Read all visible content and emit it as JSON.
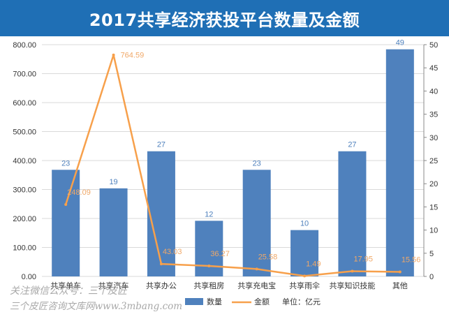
{
  "title": "2017共享经济获投平台数量及金额",
  "watermark": {
    "line1": "关注微信公众号：三个皮匠",
    "line2": "三个皮匠咨询文库网www.3mbang.com"
  },
  "colors": {
    "title_bg": "#1f6fb5",
    "bar": "#4f81bd",
    "line": "#f7a04b",
    "amount_label": "#f0a868",
    "count_label": "#4f81bd",
    "grid": "#d9d9d9",
    "axis_text": "#333333"
  },
  "chart_data": {
    "type": "bar+line",
    "title": "2017共享经济获投平台数量及金额",
    "categories": [
      "共享单车",
      "共享汽车",
      "共享办公",
      "共享租房",
      "共享充电宝",
      "共享雨伞",
      "共享知识技能",
      "其他"
    ],
    "series": [
      {
        "name": "数量",
        "type": "bar",
        "axis": "right",
        "values": [
          23,
          19,
          27,
          12,
          23,
          10,
          27,
          49
        ],
        "labels": [
          "23",
          "19",
          "27",
          "12",
          "23",
          "10",
          "27",
          "49"
        ]
      },
      {
        "name": "金额",
        "type": "line",
        "axis": "left",
        "values": [
          248.09,
          764.59,
          43.03,
          36.27,
          25.58,
          1.49,
          17.95,
          15.56
        ],
        "labels": [
          "248.09",
          "764.59",
          "43.03",
          "36.27",
          "25.58",
          "1.49",
          "17.95",
          "15.56"
        ]
      }
    ],
    "left_axis": {
      "range": [
        0,
        800
      ],
      "ticks": [
        "0.00",
        "100.00",
        "200.00",
        "300.00",
        "400.00",
        "500.00",
        "600.00",
        "700.00",
        "800.00"
      ]
    },
    "right_axis": {
      "range": [
        0,
        50
      ],
      "ticks": [
        "0",
        "5",
        "10",
        "15",
        "20",
        "25",
        "30",
        "35",
        "40",
        "45",
        "50"
      ]
    },
    "unit_note": "单位：亿元",
    "grid": true,
    "legend_position": "bottom-right"
  }
}
